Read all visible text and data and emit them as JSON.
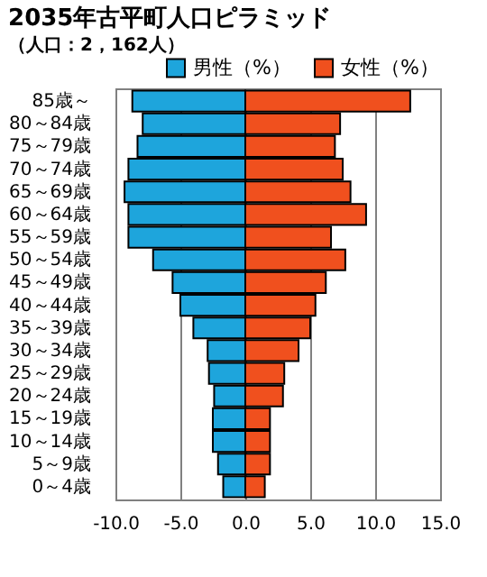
{
  "chart_data": {
    "type": "bar",
    "orientation": "horizontal",
    "title": "2035年古平町人口ピラミッド",
    "subtitle": "（人口：2，162人）",
    "categories": [
      "85歳～",
      "80～84歳",
      "75～79歳",
      "70～74歳",
      "65～69歳",
      "60～64歳",
      "55～59歳",
      "50～54歳",
      "45～49歳",
      "40～44歳",
      "35～39歳",
      "30～34歳",
      "25～29歳",
      "20～24歳",
      "15～19歳",
      "10～14歳",
      "5～9歳",
      "0～4歳"
    ],
    "series": [
      {
        "name": "男性（%）",
        "color": "#1ea5dc",
        "values": [
          -8.7,
          -7.9,
          -8.3,
          -9.0,
          -9.3,
          -9.0,
          -9.0,
          -7.1,
          -5.6,
          -5.0,
          -4.0,
          -2.9,
          -2.8,
          -2.4,
          -2.5,
          -2.5,
          -2.1,
          -1.7
        ]
      },
      {
        "name": "女性（%）",
        "color": "#f0501e",
        "values": [
          12.7,
          7.3,
          6.9,
          7.5,
          8.1,
          9.3,
          6.6,
          7.7,
          6.2,
          5.4,
          5.0,
          4.1,
          3.0,
          2.9,
          1.9,
          1.9,
          1.9,
          1.5
        ]
      }
    ],
    "xlim": [
      -10,
      15
    ],
    "xticks": [
      {
        "value": -10,
        "label": "-10.0"
      },
      {
        "value": -5,
        "label": "-5.0"
      },
      {
        "value": 0,
        "label": "0.0"
      },
      {
        "value": 5,
        "label": "5.0"
      },
      {
        "value": 10,
        "label": "10.0"
      },
      {
        "value": 15,
        "label": "15.0"
      }
    ],
    "grid": "x",
    "legend": "top right",
    "stacked": true
  }
}
